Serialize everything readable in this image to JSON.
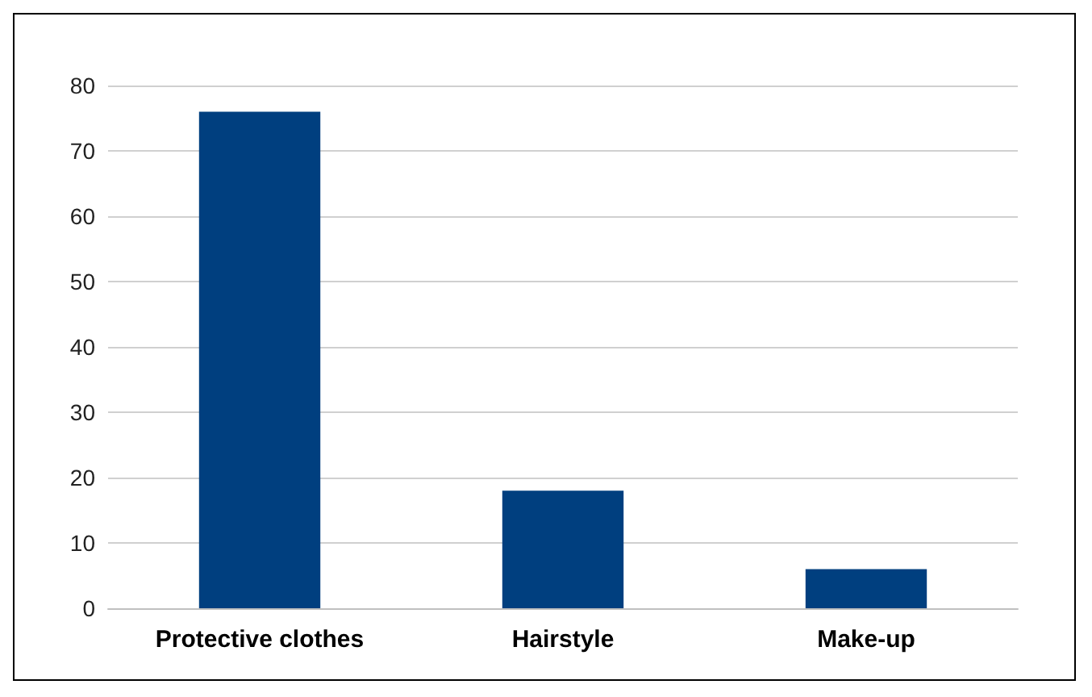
{
  "chart_data": {
    "type": "bar",
    "categories": [
      "Protective clothes",
      "Hairstyle",
      "Make-up"
    ],
    "values": [
      76,
      18,
      6
    ],
    "color": "#003f7f",
    "ylim": [
      0,
      80
    ],
    "yticks": [
      0,
      10,
      20,
      30,
      40,
      50,
      60,
      70,
      80
    ],
    "grid": "y"
  }
}
